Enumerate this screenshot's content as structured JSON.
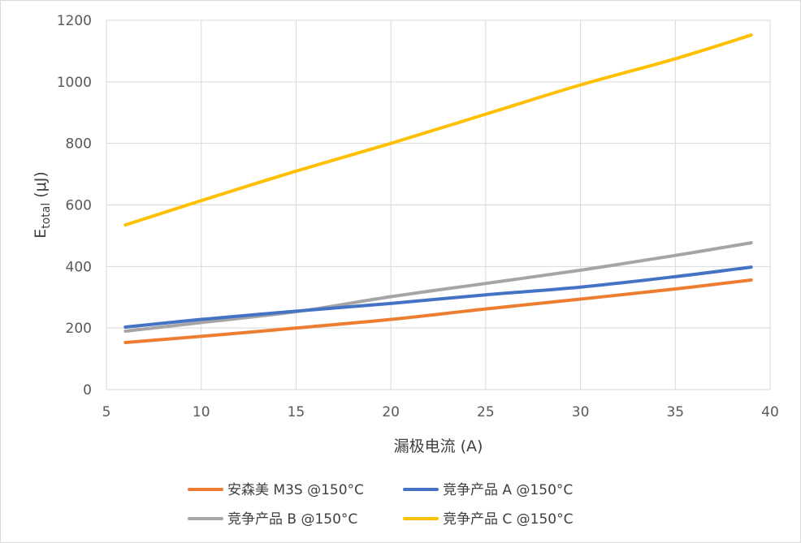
{
  "chart_data": {
    "type": "line",
    "xlabel": "漏极电流 (A)",
    "ylabel": {
      "main": "E",
      "subscript": "total",
      "unit": "(μJ)"
    },
    "xlim": [
      5,
      40
    ],
    "ylim": [
      0,
      1200
    ],
    "xticks": [
      5,
      10,
      15,
      20,
      25,
      30,
      35,
      40
    ],
    "yticks": [
      0,
      200,
      400,
      600,
      800,
      1000,
      1200
    ],
    "grid": true,
    "legend_position": "bottom",
    "series": [
      {
        "name": "安森美 M3S @150°C",
        "color": "#ED7D31",
        "x": [
          6,
          10,
          15,
          20,
          25,
          30,
          35,
          39
        ],
        "y": [
          153,
          173,
          200,
          228,
          262,
          294,
          327,
          356
        ]
      },
      {
        "name": "竞争产品 A @150°C",
        "color": "#4472C4",
        "x": [
          6,
          10,
          15,
          20,
          25,
          30,
          35,
          39
        ],
        "y": [
          203,
          228,
          255,
          280,
          308,
          333,
          367,
          398
        ]
      },
      {
        "name": "竞争产品 B @150°C",
        "color": "#A5A5A5",
        "x": [
          6,
          10,
          15,
          20,
          25,
          30,
          35,
          39
        ],
        "y": [
          190,
          218,
          253,
          302,
          345,
          388,
          436,
          477
        ]
      },
      {
        "name": "竞争产品 C @150°C",
        "color": "#FFC000",
        "x": [
          6,
          10,
          15,
          20,
          25,
          30,
          35,
          39
        ],
        "y": [
          535,
          614,
          710,
          800,
          895,
          990,
          1075,
          1152
        ]
      }
    ]
  }
}
